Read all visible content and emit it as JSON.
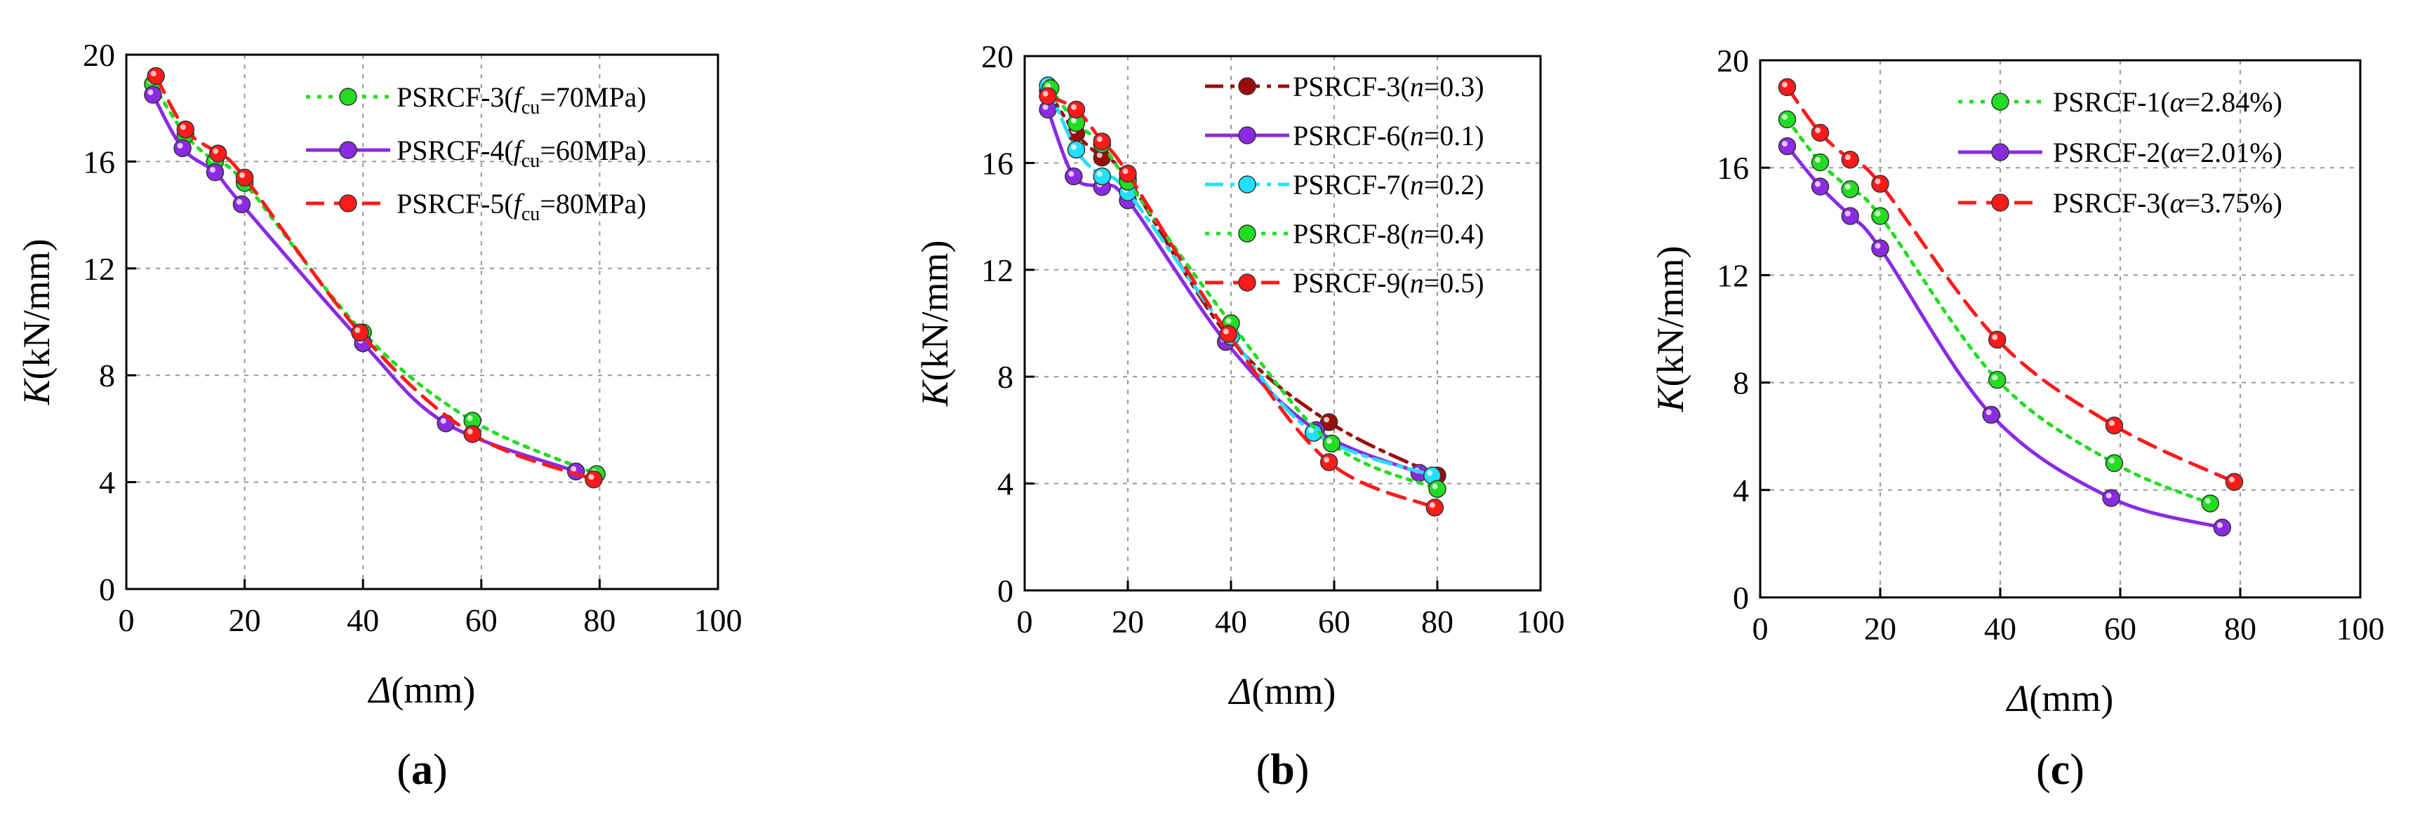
{
  "figure": {
    "title": "",
    "colors": {
      "green": "#22dd22",
      "purple": "#8a2be2",
      "red": "#ff1a1a",
      "darkred": "#9b0c0c",
      "cyan": "#22e0ff",
      "axis": "#000000",
      "grid": "#999999"
    }
  },
  "chart_data": [
    {
      "type": "line",
      "panel": "(a)",
      "panel_text": "a",
      "xlabel_symbol": "Δ",
      "xlabel_unit": "(mm)",
      "ylabel_symbol": "K",
      "ylabel_unit": "(kN/mm)",
      "xlim": [
        0,
        100
      ],
      "ylim": [
        0,
        20
      ],
      "xticks": [
        0,
        20,
        40,
        60,
        80,
        100
      ],
      "yticks": [
        0,
        4,
        8,
        12,
        16,
        20
      ],
      "grid": true,
      "legend_position": "top-right",
      "series": [
        {
          "name": "PSRCF-3(fcu=70MPa)",
          "label_prefix": "PSRCF-3(",
          "label_symbol": "f",
          "label_subscript": "cu",
          "label_suffix": "=70MPa)",
          "color": "#22dd22",
          "dash": "dotted",
          "x": [
            4.5,
            10,
            15,
            20,
            40,
            58.5,
            79.5
          ],
          "y": [
            18.9,
            17,
            16,
            15.2,
            9.6,
            6.3,
            4.3
          ]
        },
        {
          "name": "PSRCF-4(fcu=60MPa)",
          "label_prefix": "PSRCF-4(",
          "label_symbol": "f",
          "label_subscript": "cu",
          "label_suffix": "=60MPa)",
          "color": "#8a2be2",
          "dash": "solid",
          "x": [
            4.5,
            9.5,
            15,
            19.5,
            40,
            54,
            76
          ],
          "y": [
            18.5,
            16.5,
            15.6,
            14.4,
            9.2,
            6.2,
            4.4
          ]
        },
        {
          "name": "PSRCF-5(fcu=80MPa)",
          "label_prefix": "PSRCF-5(",
          "label_symbol": "f",
          "label_subscript": "cu",
          "label_suffix": "=80MPa)",
          "color": "#ff1a1a",
          "dash": "dashed",
          "x": [
            5,
            10,
            15.5,
            20,
            39.5,
            58.5,
            79
          ],
          "y": [
            19.2,
            17.2,
            16.3,
            15.4,
            9.6,
            5.8,
            4.1
          ]
        }
      ]
    },
    {
      "type": "line",
      "panel": "(b)",
      "panel_text": "b",
      "xlabel_symbol": "Δ",
      "xlabel_unit": "(mm)",
      "ylabel_symbol": "K",
      "ylabel_unit": "(kN/mm)",
      "xlim": [
        0,
        100
      ],
      "ylim": [
        0,
        20
      ],
      "xticks": [
        0,
        20,
        40,
        60,
        80,
        100
      ],
      "yticks": [
        0,
        4,
        8,
        12,
        16,
        20
      ],
      "grid": true,
      "legend_position": "top-right",
      "series": [
        {
          "name": "PSRCF-3(n=0.3)",
          "label_prefix": "PSRCF-3(",
          "label_symbol": "n",
          "label_subscript": "",
          "label_suffix": "=0.3)",
          "color": "#9b0c0c",
          "dash": "dashdot",
          "x": [
            4.5,
            10,
            15,
            20,
            39.5,
            59,
            80
          ],
          "y": [
            18.7,
            17.1,
            16.2,
            15.4,
            9.5,
            6.3,
            4.3
          ]
        },
        {
          "name": "PSRCF-6(n=0.1)",
          "label_prefix": "PSRCF-6(",
          "label_symbol": "n",
          "label_subscript": "",
          "label_suffix": "=0.1)",
          "color": "#8a2be2",
          "dash": "solid",
          "x": [
            4.5,
            9.5,
            15,
            20,
            39,
            56.5,
            76.5
          ],
          "y": [
            18,
            15.5,
            15.1,
            14.6,
            9.3,
            6,
            4.4
          ]
        },
        {
          "name": "PSRCF-7(n=0.2)",
          "label_prefix": "PSRCF-7(",
          "label_symbol": "n",
          "label_subscript": "",
          "label_suffix": "=0.2)",
          "color": "#22e0ff",
          "dash": "dashdot",
          "x": [
            4.5,
            10,
            15,
            20,
            40,
            56,
            79
          ],
          "y": [
            18.9,
            16.5,
            15.5,
            14.9,
            9.5,
            5.9,
            4.3
          ]
        },
        {
          "name": "PSRCF-8(n=0.4)",
          "label_prefix": "PSRCF-8(",
          "label_symbol": "n",
          "label_subscript": "",
          "label_suffix": "=0.4)",
          "color": "#22dd22",
          "dash": "dotted",
          "x": [
            5,
            10,
            15,
            20,
            40,
            59.5,
            80
          ],
          "y": [
            18.8,
            17.5,
            16.7,
            15.3,
            10,
            5.5,
            3.8
          ]
        },
        {
          "name": "PSRCF-9(n=0.5)",
          "label_prefix": "PSRCF-9(",
          "label_symbol": "n",
          "label_subscript": "",
          "label_suffix": "=0.5)",
          "color": "#ff1a1a",
          "dash": "dashed",
          "x": [
            4.5,
            10,
            15,
            20,
            39.5,
            59,
            79.5
          ],
          "y": [
            18.5,
            18,
            16.8,
            15.6,
            9.6,
            4.8,
            3.1
          ]
        }
      ]
    },
    {
      "type": "line",
      "panel": "(c)",
      "panel_text": "c",
      "xlabel_symbol": "Δ",
      "xlabel_unit": "(mm)",
      "ylabel_symbol": "K",
      "ylabel_unit": "(kN/mm)",
      "xlim": [
        0,
        100
      ],
      "ylim": [
        0,
        20
      ],
      "xticks": [
        0,
        20,
        40,
        60,
        80,
        100
      ],
      "yticks": [
        0,
        4,
        8,
        12,
        16,
        20
      ],
      "grid": true,
      "legend_position": "top-right",
      "series": [
        {
          "name": "PSRCF-1(α=2.84%)",
          "label_prefix": "PSRCF-1(",
          "label_symbol": "α",
          "label_subscript": "",
          "label_suffix": "=2.84%)",
          "color": "#22dd22",
          "dash": "dotted",
          "x": [
            4.5,
            10,
            15,
            20,
            39.5,
            59,
            75
          ],
          "y": [
            17.8,
            16.2,
            15.2,
            14.2,
            8.1,
            5,
            3.5
          ]
        },
        {
          "name": "PSRCF-2(α=2.01%)",
          "label_prefix": "PSRCF-2(",
          "label_symbol": "α",
          "label_subscript": "",
          "label_suffix": "=2.01%)",
          "color": "#8a2be2",
          "dash": "solid",
          "x": [
            4.5,
            10,
            15,
            20,
            38.5,
            58.5,
            77
          ],
          "y": [
            16.8,
            15.3,
            14.2,
            13,
            6.8,
            3.7,
            2.6
          ]
        },
        {
          "name": "PSRCF-3(α=3.75%)",
          "label_prefix": "PSRCF-3(",
          "label_symbol": "α",
          "label_subscript": "",
          "label_suffix": "=3.75%)",
          "color": "#ff1a1a",
          "dash": "dashed",
          "x": [
            4.5,
            10,
            15,
            20,
            39.5,
            59,
            79
          ],
          "y": [
            19,
            17.3,
            16.3,
            15.4,
            9.6,
            6.4,
            4.3
          ]
        }
      ]
    }
  ]
}
